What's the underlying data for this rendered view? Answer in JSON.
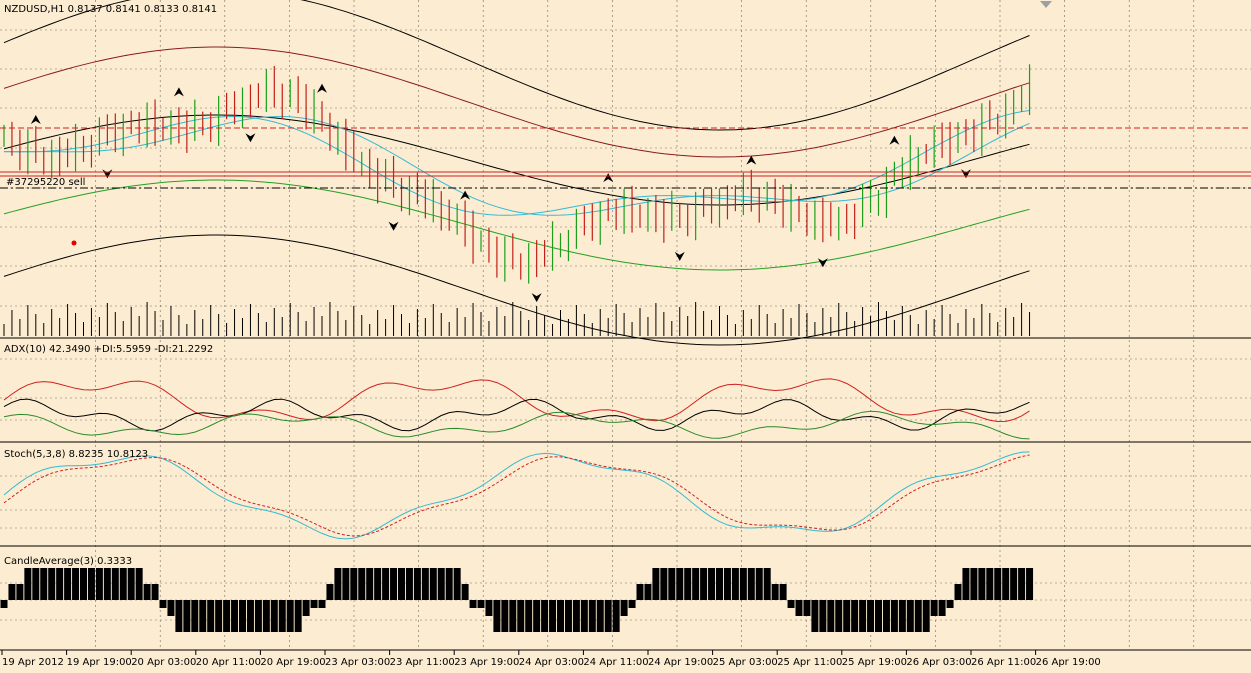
{
  "main_pane": {
    "symbol_info": "NZDUSD,H1  0.8137 0.8141 0.8133 0.8141",
    "order_label": "#37295220 sell"
  },
  "adx_pane": {
    "label": "ADX(10) 42.3490 +DI:5.5959 -DI:21.2292"
  },
  "stoch_pane": {
    "label": "Stoch(5,3,8) 8.8235 10.8123"
  },
  "candle_pane": {
    "label": "CandleAverage(3) 0.3333"
  },
  "time_axis": {
    "labels": [
      "19 Apr 2012",
      "19 Apr 19:00",
      "20 Apr 03:00",
      "20 Apr 11:00",
      "20 Apr 19:00",
      "23 Apr 03:00",
      "23 Apr 11:00",
      "23 Apr 19:00",
      "24 Apr 03:00",
      "24 Apr 11:00",
      "24 Apr 19:00",
      "25 Apr 03:00",
      "25 Apr 11:00",
      "25 Apr 19:00",
      "26 Apr 03:00",
      "26 Apr 11:00",
      "26 Apr 19:00"
    ]
  },
  "colors": {
    "background": "#fcedd2",
    "bull_bar": "#1c9e1c",
    "bear_bar": "#c0201a",
    "band_outer": "#000000",
    "band_brown": "#8b1a1a",
    "band_green": "#23a023",
    "ma_cyan": "#35b9d2",
    "order_line": "#d12020",
    "adx_plus": "#2a8a2a",
    "adx_minus": "#d02020",
    "stoch_main": "#35b9d2",
    "stoch_signal": "#d12020"
  }
}
